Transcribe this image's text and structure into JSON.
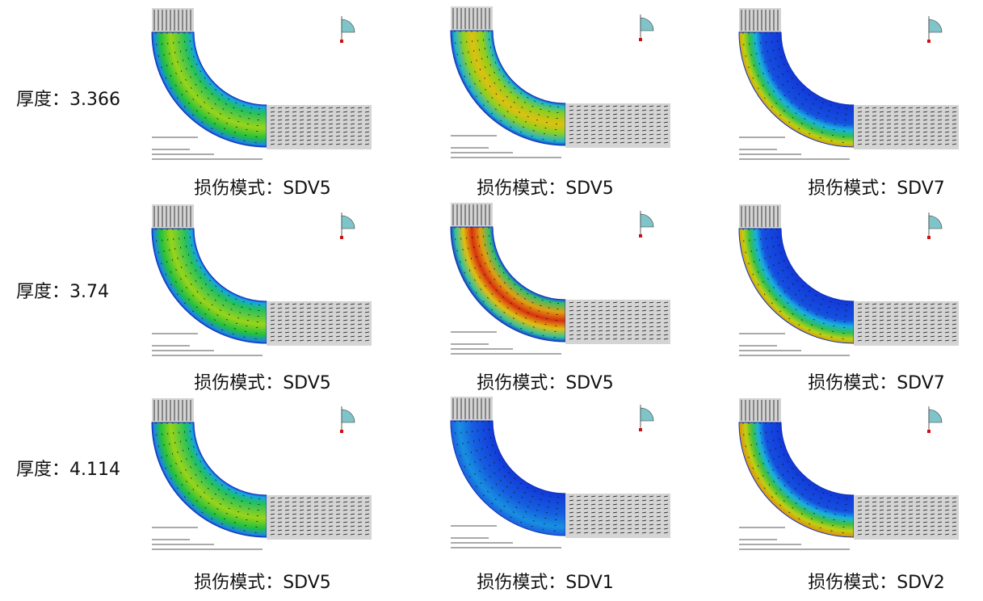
{
  "rows": [
    {
      "label": "厚度：3.366",
      "panels": [
        {
          "caption": "损伤模式：SDV5",
          "scheme": "sdv5-moderate"
        },
        {
          "caption": "损伤模式：SDV5",
          "scheme": "sdv5-high"
        },
        {
          "caption": "损伤模式：SDV7",
          "scheme": "sdv7"
        }
      ]
    },
    {
      "label": "厚度：3.74",
      "panels": [
        {
          "caption": "损伤模式：SDV5",
          "scheme": "sdv5-moderate"
        },
        {
          "caption": "损伤模式：SDV5",
          "scheme": "sdv5-severe"
        },
        {
          "caption": "损伤模式：SDV7",
          "scheme": "sdv7"
        }
      ]
    },
    {
      "label": "厚度：4.114",
      "panels": [
        {
          "caption": "损伤模式：SDV5",
          "scheme": "sdv5-moderate"
        },
        {
          "caption": "损伤模式：SDV1",
          "scheme": "sdv1"
        },
        {
          "caption": "损伤模式：SDV2",
          "scheme": "sdv2"
        }
      ]
    }
  ],
  "colors": {
    "pipe_gray": "#d4d4d4",
    "contour_low": "#1446d8",
    "contour_high": "#e03010"
  }
}
